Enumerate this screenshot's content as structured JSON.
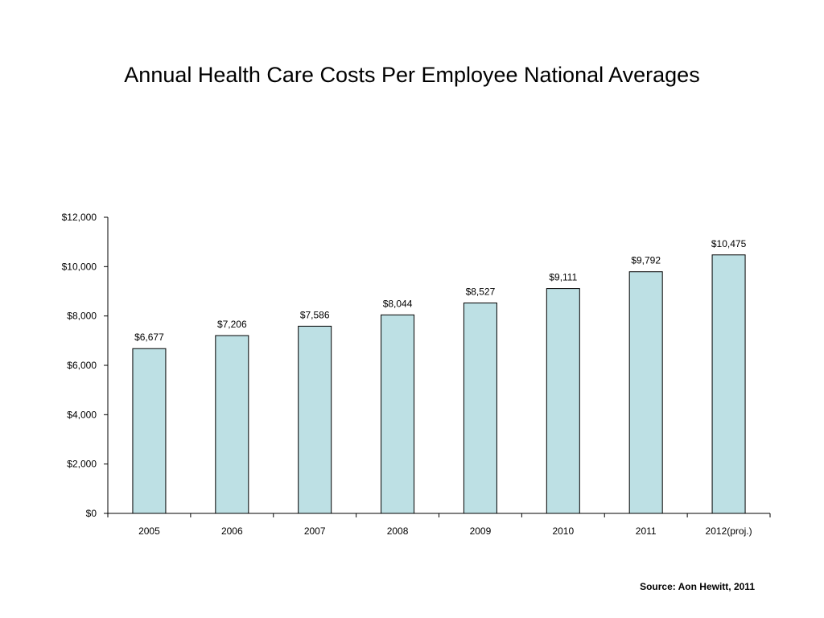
{
  "source": "Source: Aon Hewitt, 2011",
  "chart_data": {
    "type": "bar",
    "title": "Annual Health Care Costs Per Employee National Averages",
    "xlabel": "",
    "ylabel": "",
    "categories": [
      "2005",
      "2006",
      "2007",
      "2008",
      "2009",
      "2010",
      "2011",
      "2012(proj.)"
    ],
    "values": [
      6677,
      7206,
      7586,
      8044,
      8527,
      9111,
      9792,
      10475
    ],
    "data_labels": [
      "$6,677",
      "$7,206",
      "$7,586",
      "$8,044",
      "$8,527",
      "$9,111",
      "$9,792",
      "$10,475"
    ],
    "ylim": [
      0,
      12000
    ],
    "yticks": [
      0,
      2000,
      4000,
      6000,
      8000,
      10000,
      12000
    ],
    "ytick_labels": [
      "$0",
      "$2,000",
      "$4,000",
      "$6,000",
      "$8,000",
      "$10,000",
      "$12,000"
    ],
    "grid": false,
    "legend": "none",
    "bar_color": "#bde0e4",
    "bar_edge_color": "#000000"
  }
}
